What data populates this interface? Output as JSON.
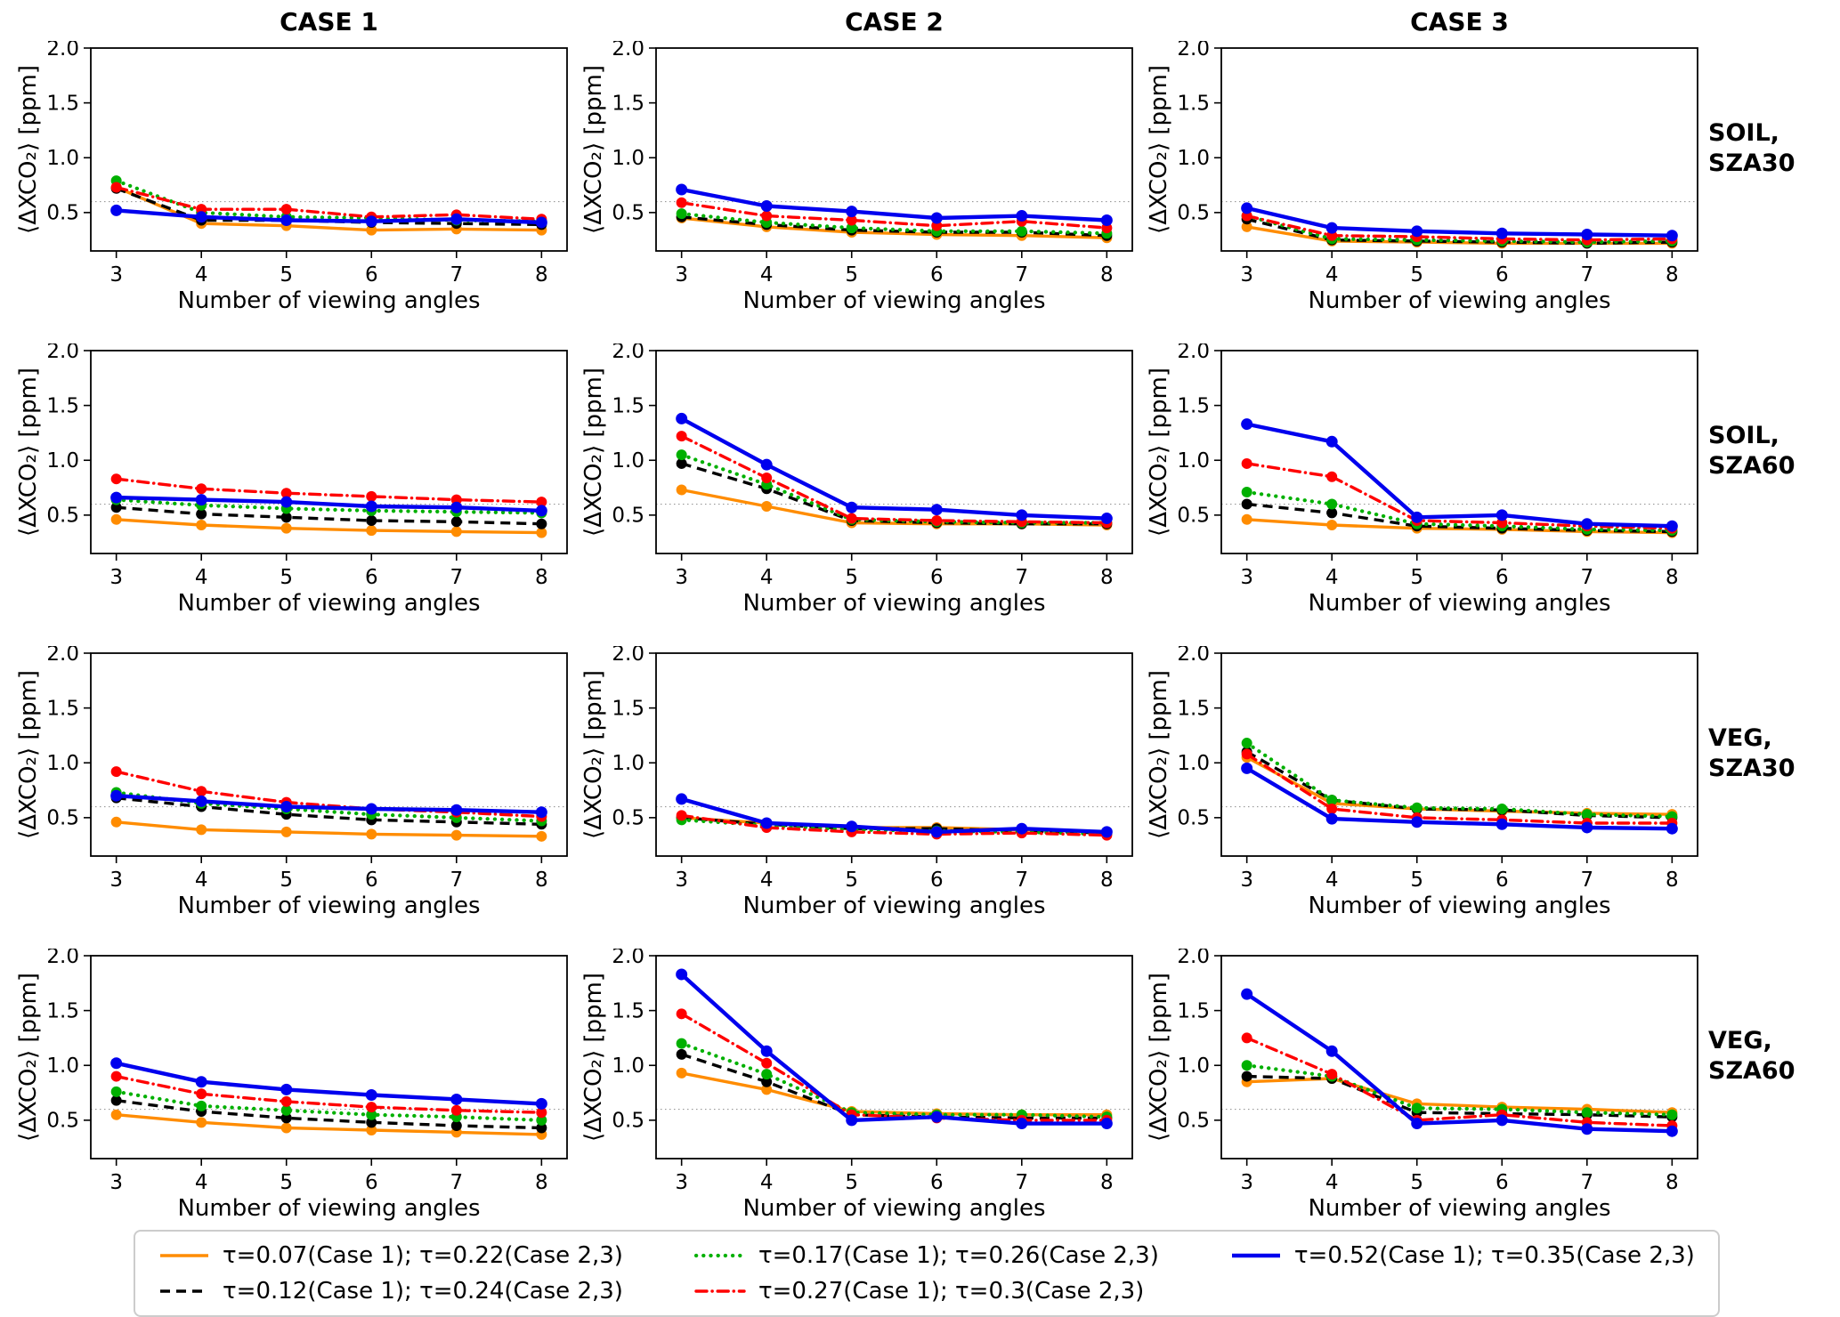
{
  "figure": {
    "column_titles": [
      "CASE 1",
      "CASE 2",
      "CASE 3"
    ],
    "row_labels": [
      "SOIL,\nSZA30",
      "SOIL,\nSZA60",
      "VEG,\nSZA30",
      "VEG,\nSZA60"
    ]
  },
  "legend": {
    "items": [
      {
        "label": "τ=0.07(Case 1); τ=0.22(Case 2,3)",
        "color": "#FF8C00",
        "style": "solid"
      },
      {
        "label": "τ=0.12(Case 1); τ=0.24(Case 2,3)",
        "color": "#000000",
        "style": "dashed"
      },
      {
        "label": "τ=0.17(Case 1); τ=0.26(Case 2,3)",
        "color": "#00B000",
        "style": "dotted"
      },
      {
        "label": "τ=0.27(Case 1); τ=0.3(Case 2,3)",
        "color": "#FF0000",
        "style": "dashdot"
      },
      {
        "label": "τ=0.52(Case 1); τ=0.35(Case 2,3)",
        "color": "#0000EE",
        "style": "solid"
      }
    ]
  },
  "chart_data": {
    "type": "line",
    "x": [
      3,
      4,
      5,
      6,
      7,
      8
    ],
    "xlabel": "Number of viewing angles",
    "ylabel": "⟨ΔXCO₂⟩ [ppm]",
    "ylim": [
      0.15,
      2.0
    ],
    "yticks": [
      0.5,
      1.0,
      1.5,
      2.0
    ],
    "ytick_labels": [
      "0.5",
      "1.0",
      "1.5",
      "2.0"
    ],
    "threshold": 0.6,
    "grid": "single dotted horizontal line at 0.6",
    "legend_position": "bottom",
    "series_order": [
      "tau_orange",
      "tau_black_dashed",
      "tau_green_dotted",
      "tau_red_dashdot",
      "tau_blue"
    ],
    "panels": [
      {
        "case": "CASE 1",
        "row": "SOIL, SZA30",
        "series": [
          [
            0.73,
            0.4,
            0.38,
            0.34,
            0.35,
            0.34
          ],
          [
            0.72,
            0.43,
            0.43,
            0.41,
            0.4,
            0.39
          ],
          [
            0.79,
            0.5,
            0.46,
            0.45,
            0.43,
            0.42
          ],
          [
            0.73,
            0.53,
            0.53,
            0.46,
            0.48,
            0.44
          ],
          [
            0.52,
            0.46,
            0.43,
            0.42,
            0.44,
            0.41
          ]
        ]
      },
      {
        "case": "CASE 2",
        "row": "SOIL, SZA30",
        "series": [
          [
            0.45,
            0.37,
            0.32,
            0.3,
            0.29,
            0.27
          ],
          [
            0.46,
            0.39,
            0.34,
            0.32,
            0.32,
            0.29
          ],
          [
            0.49,
            0.41,
            0.36,
            0.33,
            0.33,
            0.31
          ],
          [
            0.59,
            0.47,
            0.43,
            0.38,
            0.42,
            0.36
          ],
          [
            0.71,
            0.56,
            0.51,
            0.45,
            0.47,
            0.43
          ]
        ]
      },
      {
        "case": "CASE 3",
        "row": "SOIL, SZA30",
        "series": [
          [
            0.37,
            0.24,
            0.23,
            0.22,
            0.22,
            0.22
          ],
          [
            0.44,
            0.25,
            0.24,
            0.23,
            0.22,
            0.23
          ],
          [
            0.47,
            0.26,
            0.25,
            0.24,
            0.23,
            0.24
          ],
          [
            0.47,
            0.29,
            0.28,
            0.26,
            0.25,
            0.26
          ],
          [
            0.54,
            0.36,
            0.33,
            0.31,
            0.3,
            0.29
          ]
        ]
      },
      {
        "case": "CASE 1",
        "row": "SOIL, SZA60",
        "series": [
          [
            0.46,
            0.41,
            0.38,
            0.36,
            0.35,
            0.34
          ],
          [
            0.57,
            0.51,
            0.48,
            0.45,
            0.44,
            0.42
          ],
          [
            0.64,
            0.59,
            0.56,
            0.54,
            0.53,
            0.52
          ],
          [
            0.83,
            0.74,
            0.7,
            0.67,
            0.64,
            0.62
          ],
          [
            0.66,
            0.64,
            0.62,
            0.58,
            0.57,
            0.54
          ]
        ]
      },
      {
        "case": "CASE 2",
        "row": "SOIL, SZA60",
        "series": [
          [
            0.73,
            0.58,
            0.43,
            0.42,
            0.42,
            0.41
          ],
          [
            0.97,
            0.74,
            0.45,
            0.43,
            0.42,
            0.42
          ],
          [
            1.05,
            0.78,
            0.46,
            0.44,
            0.43,
            0.43
          ],
          [
            1.22,
            0.84,
            0.47,
            0.45,
            0.44,
            0.43
          ],
          [
            1.38,
            0.96,
            0.57,
            0.55,
            0.5,
            0.47
          ]
        ]
      },
      {
        "case": "CASE 3",
        "row": "SOIL, SZA60",
        "series": [
          [
            0.46,
            0.41,
            0.38,
            0.37,
            0.35,
            0.34
          ],
          [
            0.6,
            0.52,
            0.4,
            0.38,
            0.36,
            0.35
          ],
          [
            0.71,
            0.6,
            0.42,
            0.4,
            0.37,
            0.36
          ],
          [
            0.97,
            0.85,
            0.45,
            0.43,
            0.4,
            0.38
          ],
          [
            1.33,
            1.17,
            0.48,
            0.5,
            0.42,
            0.4
          ]
        ]
      },
      {
        "case": "CASE 1",
        "row": "VEG, SZA30",
        "series": [
          [
            0.46,
            0.39,
            0.37,
            0.35,
            0.34,
            0.33
          ],
          [
            0.68,
            0.6,
            0.53,
            0.48,
            0.46,
            0.44
          ],
          [
            0.73,
            0.63,
            0.58,
            0.53,
            0.5,
            0.47
          ],
          [
            0.92,
            0.74,
            0.64,
            0.58,
            0.55,
            0.51
          ],
          [
            0.7,
            0.65,
            0.6,
            0.58,
            0.57,
            0.55
          ]
        ]
      },
      {
        "case": "CASE 2",
        "row": "VEG, SZA30",
        "series": [
          [
            0.5,
            0.45,
            0.41,
            0.41,
            0.39,
            0.37
          ],
          [
            0.5,
            0.44,
            0.4,
            0.4,
            0.38,
            0.36
          ],
          [
            0.48,
            0.43,
            0.39,
            0.38,
            0.37,
            0.35
          ],
          [
            0.52,
            0.41,
            0.37,
            0.35,
            0.36,
            0.34
          ],
          [
            0.67,
            0.45,
            0.42,
            0.37,
            0.4,
            0.37
          ]
        ]
      },
      {
        "case": "CASE 3",
        "row": "VEG, SZA30",
        "series": [
          [
            1.05,
            0.63,
            0.58,
            0.56,
            0.54,
            0.53
          ],
          [
            1.1,
            0.66,
            0.58,
            0.57,
            0.52,
            0.5
          ],
          [
            1.18,
            0.66,
            0.59,
            0.58,
            0.53,
            0.51
          ],
          [
            1.08,
            0.58,
            0.5,
            0.48,
            0.45,
            0.45
          ],
          [
            0.95,
            0.49,
            0.46,
            0.44,
            0.41,
            0.4
          ]
        ]
      },
      {
        "case": "CASE 1",
        "row": "VEG, SZA60",
        "series": [
          [
            0.55,
            0.48,
            0.43,
            0.41,
            0.39,
            0.37
          ],
          [
            0.68,
            0.58,
            0.52,
            0.48,
            0.45,
            0.43
          ],
          [
            0.76,
            0.63,
            0.59,
            0.55,
            0.53,
            0.5
          ],
          [
            0.9,
            0.74,
            0.67,
            0.62,
            0.59,
            0.57
          ],
          [
            1.02,
            0.85,
            0.78,
            0.73,
            0.69,
            0.65
          ]
        ]
      },
      {
        "case": "CASE 2",
        "row": "VEG, SZA60",
        "series": [
          [
            0.93,
            0.78,
            0.58,
            0.56,
            0.55,
            0.55
          ],
          [
            1.1,
            0.85,
            0.55,
            0.53,
            0.52,
            0.52
          ],
          [
            1.2,
            0.92,
            0.57,
            0.55,
            0.55,
            0.53
          ],
          [
            1.47,
            1.02,
            0.55,
            0.52,
            0.5,
            0.5
          ],
          [
            1.83,
            1.13,
            0.5,
            0.53,
            0.47,
            0.47
          ]
        ]
      },
      {
        "case": "CASE 3",
        "row": "VEG, SZA60",
        "series": [
          [
            0.85,
            0.88,
            0.65,
            0.62,
            0.6,
            0.57
          ],
          [
            0.9,
            0.88,
            0.57,
            0.56,
            0.55,
            0.53
          ],
          [
            1.0,
            0.9,
            0.61,
            0.6,
            0.57,
            0.55
          ],
          [
            1.25,
            0.92,
            0.5,
            0.55,
            0.48,
            0.45
          ],
          [
            1.65,
            1.13,
            0.47,
            0.5,
            0.42,
            0.4
          ]
        ]
      }
    ]
  }
}
